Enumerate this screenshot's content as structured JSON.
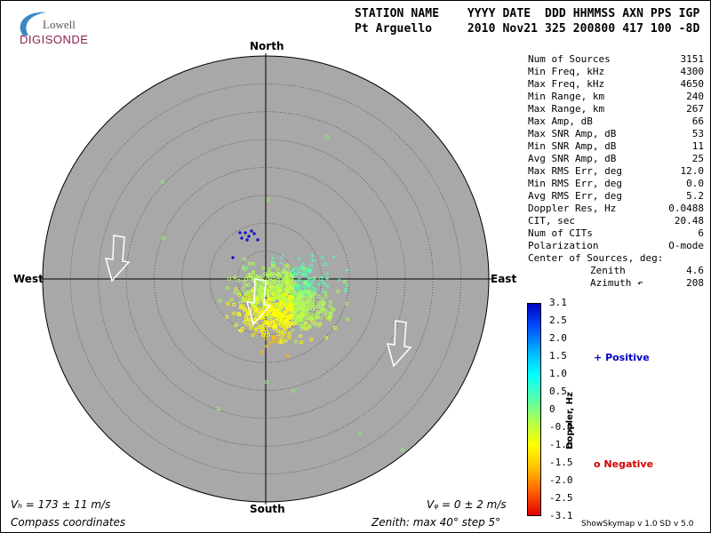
{
  "logo": {
    "line1": "Lowell",
    "line2": "DIGISONDE"
  },
  "header": {
    "labels": "STATION NAME    YYYY DATE  DDD HHMMSS AXN PPS IGP",
    "values": "Pt Arguello     2010 Nov21 325 200800 417 100 -8D"
  },
  "compass": {
    "north": "North",
    "south": "South",
    "east": "East",
    "west": "West"
  },
  "stats": [
    {
      "label": "Num of Sources",
      "value": "3151"
    },
    {
      "label": "Min Freq, kHz",
      "value": "4300"
    },
    {
      "label": "Max Freq, kHz",
      "value": "4650"
    },
    {
      "label": "Min Range, km",
      "value": "240"
    },
    {
      "label": "Max Range, km",
      "value": "267"
    },
    {
      "label": "Max Amp, dB",
      "value": "66"
    },
    {
      "label": "Max SNR Amp, dB",
      "value": "53"
    },
    {
      "label": "Min SNR Amp, dB",
      "value": "11"
    },
    {
      "label": "Avg SNR Amp, dB",
      "value": "25"
    },
    {
      "label": "Max RMS Err, deg",
      "value": "12.0"
    },
    {
      "label": "Min RMS Err, deg",
      "value": "0.0"
    },
    {
      "label": "Avg RMS Err, deg",
      "value": "5.2"
    },
    {
      "label": "Doppler Res, Hz",
      "value": "0.0488"
    },
    {
      "label": "CIT, sec",
      "value": "20.48"
    },
    {
      "label": "Num of CITs",
      "value": "6"
    },
    {
      "label": "Polarization",
      "value": "O-mode"
    },
    {
      "label": "Center of Sources, deg:",
      "value": ""
    },
    {
      "label": "Zenith",
      "value": "4.6",
      "indent": true
    },
    {
      "label": "Azimuth ↶",
      "value": "208",
      "indent": true
    }
  ],
  "colorbar": {
    "ticks": [
      "3.1",
      "2.5",
      "2.0",
      "1.5",
      "1.0",
      "0.5",
      "0",
      "-0.5",
      "-1.0",
      "-1.5",
      "-2.0",
      "-2.5",
      "-3.1"
    ],
    "label": "Doppler, Hz",
    "colors": [
      "#0000c8",
      "#0050ff",
      "#00b0ff",
      "#00ffff",
      "#50ffb0",
      "#b0ff50",
      "#ffff00",
      "#ffc000",
      "#ff6000",
      "#e00000"
    ]
  },
  "legend": {
    "positive": "Positive",
    "negative": "Negative",
    "plus": "+",
    "circle": "o",
    "positive_color": "#0000c0",
    "negative_color": "#d00000"
  },
  "footer": {
    "vh": "Vₕ = 173 ± 11 m/s",
    "vz": "Vᵩ = 0 ± 2 m/s",
    "coords": "Compass coordinates",
    "zenith": "Zenith: max 40°  step 5°",
    "version": "ShowSkymap v 1.0   SD v 5.0"
  },
  "plot": {
    "zenith_max_deg": 40,
    "zenith_step_deg": 5,
    "background": "#a8a8a8"
  }
}
